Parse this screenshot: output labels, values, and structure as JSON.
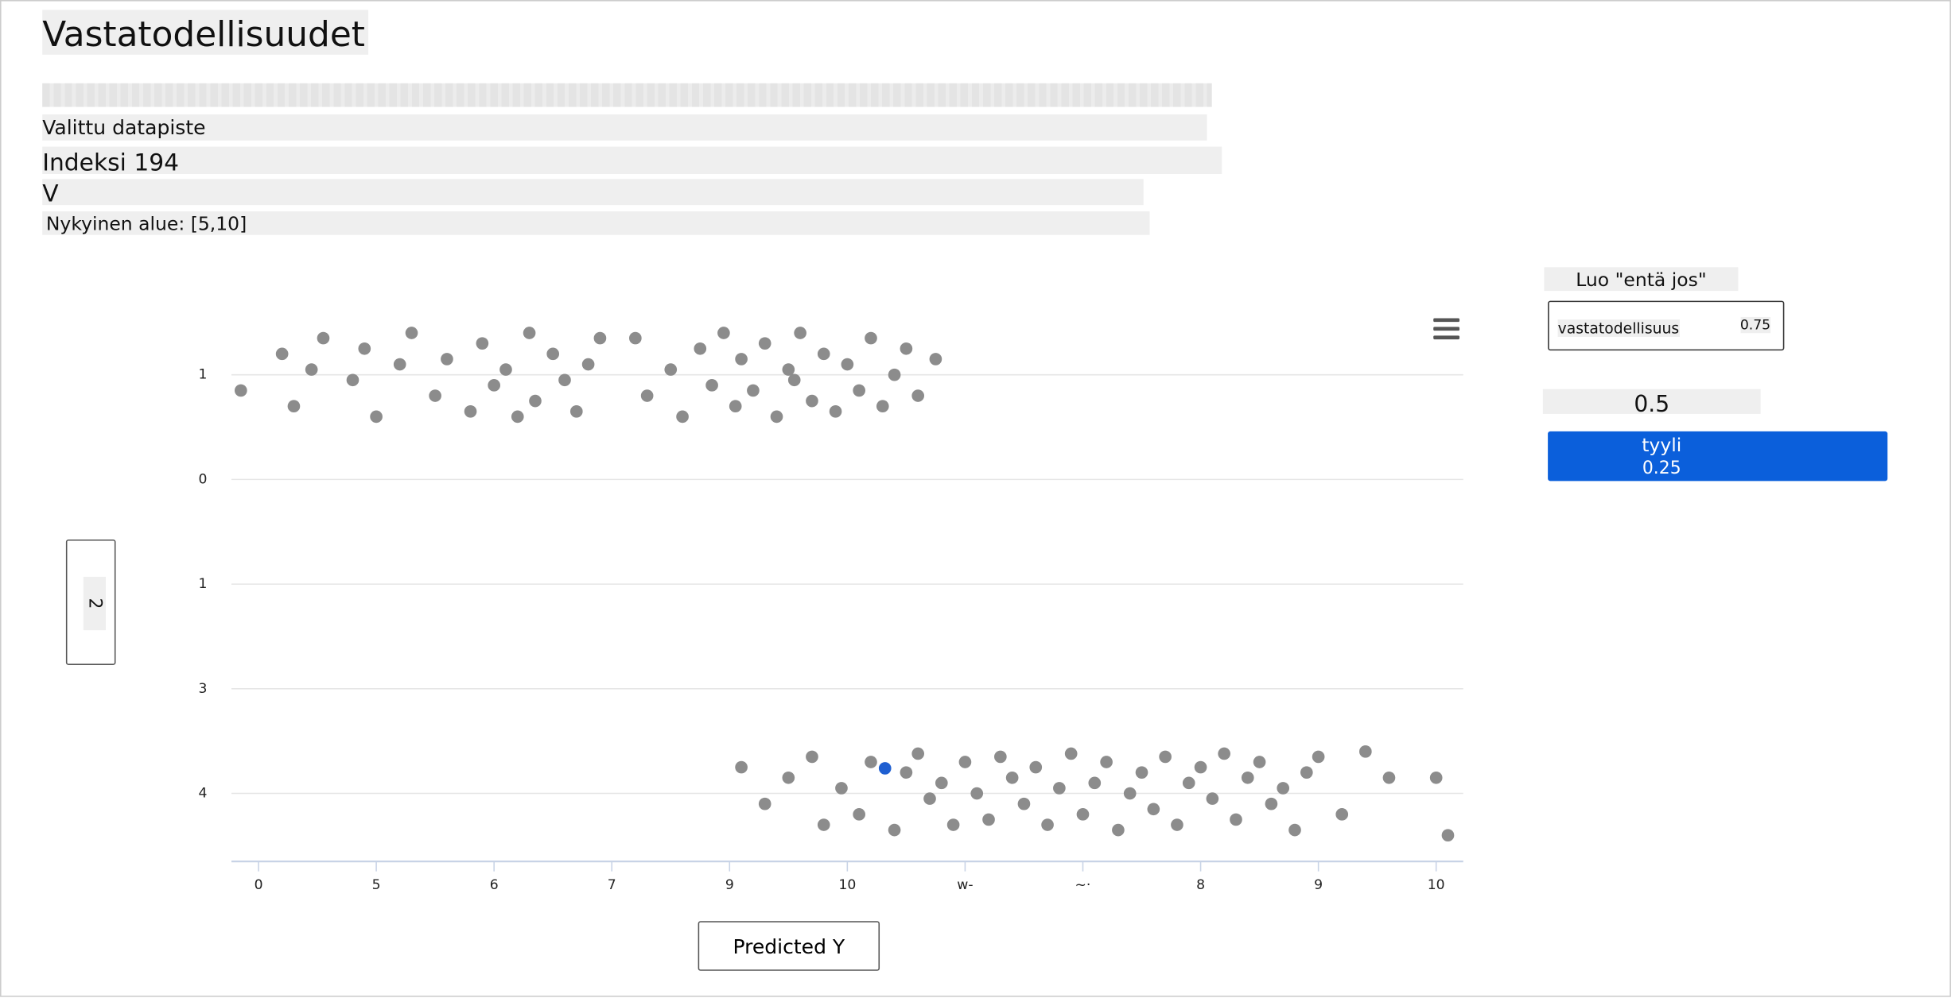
{
  "header": {
    "title": "Vastatodellisuudet",
    "selected": "Valittu datapiste",
    "index": "Indeksi 194",
    "feature": "V",
    "range": "Nykyinen alue: [5,10]"
  },
  "panel": {
    "heading": "Luo \"entä jos\"",
    "input_label": "vastatodellisuus",
    "input_value": "0.75",
    "value": "0.5",
    "button_label": "tyyli",
    "button_value": "0.25"
  },
  "chart_data": {
    "type": "scatter",
    "y_axis_button": "2",
    "x_axis_button": "Predicted Y",
    "xlim": [
      -0.23,
      10.23
    ],
    "xticks": [
      0,
      {
        "value": 1,
        "label": "5"
      },
      {
        "value": 2,
        "label": "6"
      },
      {
        "value": 3,
        "label": "7"
      },
      {
        "value": 4,
        "label": "9"
      },
      {
        "value": 5,
        "label": "10"
      },
      {
        "value": 6,
        "label": "w-"
      },
      {
        "value": 7,
        "label": "~·"
      },
      8,
      9,
      10
    ],
    "ylim": [
      -0.65,
      4.6
    ],
    "yticks": [
      {
        "value": 0,
        "label": "4"
      },
      {
        "value": 1,
        "label": "3"
      },
      {
        "value": 2,
        "label": "1"
      },
      {
        "value": 3,
        "label": "0"
      },
      {
        "value": 4,
        "label": "1"
      }
    ],
    "grid": true,
    "series": [
      {
        "color": "#8c8c8c",
        "x": [
          -0.15,
          0.2,
          0.3,
          0.45,
          0.55,
          0.8,
          0.9,
          1.0,
          1.2,
          1.3,
          1.5,
          1.6,
          1.8,
          1.9,
          2.0,
          2.1,
          2.2,
          2.3,
          2.35,
          2.5,
          2.6,
          2.7,
          2.8,
          2.9,
          3.2,
          3.3,
          3.5,
          3.6,
          3.75,
          3.85,
          3.95,
          4.05,
          4.1,
          4.2,
          4.3,
          4.4,
          4.5,
          4.55,
          4.6,
          4.7,
          4.8,
          4.9,
          5.0,
          5.1,
          5.2,
          5.3,
          5.4,
          5.5,
          5.6,
          5.75
        ],
        "values": [
          3.85,
          4.2,
          3.7,
          4.05,
          4.35,
          3.95,
          4.25,
          3.6,
          4.1,
          4.4,
          3.8,
          4.15,
          3.65,
          4.3,
          3.9,
          4.05,
          3.6,
          4.4,
          3.75,
          4.2,
          3.95,
          3.65,
          4.1,
          4.35,
          4.35,
          3.8,
          4.05,
          3.6,
          4.25,
          3.9,
          4.4,
          3.7,
          4.15,
          3.85,
          4.3,
          3.6,
          4.05,
          3.95,
          4.4,
          3.75,
          4.2,
          3.65,
          4.1,
          3.85,
          4.35,
          3.7,
          4.0,
          4.25,
          3.8,
          4.15
        ]
      },
      {
        "color": "#8c8c8c",
        "x": [
          4.1,
          4.3,
          4.5,
          4.7,
          4.8,
          4.95,
          5.1,
          5.2,
          5.4,
          5.5,
          5.6,
          5.7,
          5.8,
          5.9,
          6.0,
          6.1,
          6.2,
          6.3,
          6.4,
          6.5,
          6.6,
          6.7,
          6.8,
          6.9,
          7.0,
          7.1,
          7.2,
          7.3,
          7.4,
          7.5,
          7.6,
          7.7,
          7.8,
          7.9,
          8.0,
          8.1,
          8.2,
          8.3,
          8.4,
          8.5,
          8.6,
          8.7,
          8.8,
          8.9,
          9.0,
          9.2,
          9.4,
          9.6,
          10.0,
          10.1
        ],
        "values": [
          0.25,
          -0.1,
          0.15,
          0.35,
          -0.3,
          0.05,
          -0.2,
          0.3,
          -0.35,
          0.2,
          0.38,
          -0.05,
          0.1,
          -0.3,
          0.3,
          0.0,
          -0.25,
          0.35,
          0.15,
          -0.1,
          0.25,
          -0.3,
          0.05,
          0.38,
          -0.2,
          0.1,
          0.3,
          -0.35,
          0.0,
          0.2,
          -0.15,
          0.35,
          -0.3,
          0.1,
          0.25,
          -0.05,
          0.38,
          -0.25,
          0.15,
          0.3,
          -0.1,
          0.05,
          -0.35,
          0.2,
          0.35,
          -0.2,
          0.4,
          0.15,
          0.15,
          -0.4
        ]
      },
      {
        "color": "#1f5fd1",
        "x": [
          5.32
        ],
        "values": [
          0.24
        ]
      }
    ]
  }
}
